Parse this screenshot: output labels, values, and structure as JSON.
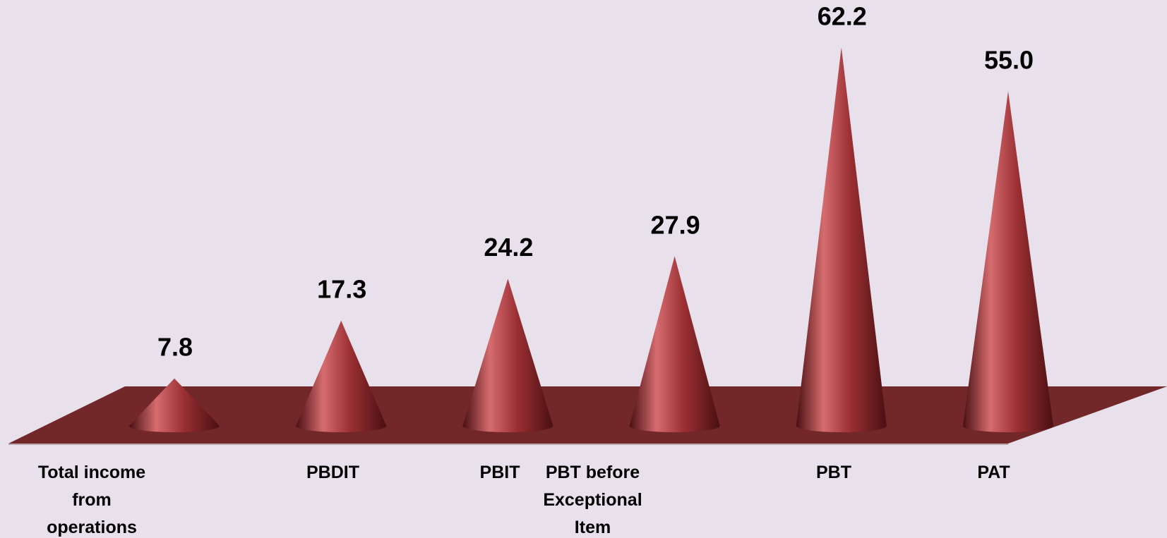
{
  "chart_data": {
    "type": "bar",
    "style": "3d-cone",
    "categories": [
      "Total income from operations",
      "PBDIT",
      "PBIT",
      "PBT before Exceptional Item",
      "PBT",
      "PAT"
    ],
    "category_label_lines": [
      [
        "Total income",
        "from",
        "operations"
      ],
      [
        "PBDIT"
      ],
      [
        "PBIT"
      ],
      [
        "PBT before",
        "Exceptional",
        "Item"
      ],
      [
        "PBT"
      ],
      [
        "PAT"
      ]
    ],
    "values": [
      7.8,
      17.3,
      24.2,
      27.9,
      62.2,
      55.0
    ],
    "value_labels": [
      "7.8",
      "17.3",
      "24.2",
      "27.9",
      "62.2",
      "55.0"
    ],
    "title": "",
    "xlabel": "",
    "ylabel": "",
    "ylim": [
      0,
      70
    ],
    "grid": false,
    "legend": "none"
  },
  "colors": {
    "background": "#e8e1ec",
    "cone_base": "#9b2f33",
    "cone_highlight": "#d56c6f",
    "cone_shadow": "#4a1012",
    "floor": "#722729",
    "floor_edge": "#b8a8ad",
    "text": "#000000"
  }
}
